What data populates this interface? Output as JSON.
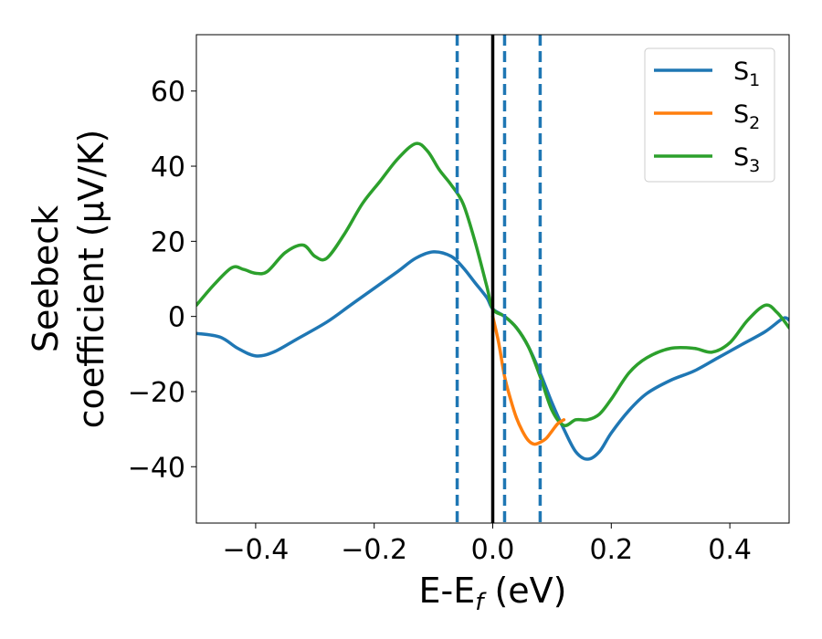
{
  "chart_data": {
    "type": "line",
    "xlabel": "E-E",
    "xlabel_sub": "f",
    "xlabel_unit": " (eV)",
    "ylabel_line1": "Seebeck",
    "ylabel_line2": "coefficient  (μV/K)",
    "xlim": [
      -0.5,
      0.5
    ],
    "ylim": [
      -55,
      75
    ],
    "xticks": [
      -0.4,
      -0.2,
      0.0,
      0.2,
      0.4
    ],
    "xtick_labels": [
      "−0.4",
      "−0.2",
      "0.0",
      "0.2",
      "0.4"
    ],
    "yticks": [
      -40,
      -20,
      0,
      20,
      40,
      60
    ],
    "ytick_labels": [
      "−40",
      "−20",
      "0",
      "20",
      "40",
      "60"
    ],
    "grid": false,
    "legend_position": "top-right",
    "vertical_lines": [
      {
        "x": -0.06,
        "style": "dashed",
        "color": "#1f77b4"
      },
      {
        "x": 0.0,
        "style": "solid",
        "color": "#000000"
      },
      {
        "x": 0.02,
        "style": "dashed",
        "color": "#1f77b4"
      },
      {
        "x": 0.08,
        "style": "dashed",
        "color": "#1f77b4"
      }
    ],
    "series": [
      {
        "name": "S",
        "sub": "1",
        "color": "#1f77b4",
        "points": [
          [
            -0.5,
            -4.5
          ],
          [
            -0.46,
            -5.5
          ],
          [
            -0.43,
            -8.5
          ],
          [
            -0.4,
            -10.5
          ],
          [
            -0.37,
            -9.5
          ],
          [
            -0.33,
            -6
          ],
          [
            -0.28,
            -1.5
          ],
          [
            -0.24,
            3
          ],
          [
            -0.2,
            7.5
          ],
          [
            -0.16,
            12
          ],
          [
            -0.13,
            15.5
          ],
          [
            -0.1,
            17.2
          ],
          [
            -0.07,
            16
          ],
          [
            -0.05,
            13
          ],
          [
            -0.03,
            9
          ],
          [
            -0.01,
            5
          ],
          [
            0.0,
            2
          ],
          [
            0.02,
            0
          ],
          [
            0.04,
            -3
          ],
          [
            0.06,
            -8
          ],
          [
            0.08,
            -15
          ],
          [
            0.1,
            -23
          ],
          [
            0.12,
            -30
          ],
          [
            0.14,
            -36
          ],
          [
            0.16,
            -38
          ],
          [
            0.18,
            -36
          ],
          [
            0.2,
            -31
          ],
          [
            0.23,
            -25
          ],
          [
            0.26,
            -20.5
          ],
          [
            0.3,
            -17
          ],
          [
            0.34,
            -14.5
          ],
          [
            0.38,
            -11
          ],
          [
            0.42,
            -7.5
          ],
          [
            0.46,
            -4
          ],
          [
            0.49,
            -0.5
          ],
          [
            0.5,
            -1
          ]
        ]
      },
      {
        "name": "S",
        "sub": "2",
        "color": "#ff7f0e",
        "points": [
          [
            0.0,
            0.0
          ],
          [
            0.01,
            -7
          ],
          [
            0.02,
            -16
          ],
          [
            0.03,
            -22
          ],
          [
            0.04,
            -27
          ],
          [
            0.05,
            -30.5
          ],
          [
            0.06,
            -33
          ],
          [
            0.07,
            -34
          ],
          [
            0.08,
            -33.5
          ],
          [
            0.09,
            -32.5
          ],
          [
            0.1,
            -30.5
          ],
          [
            0.11,
            -28.5
          ],
          [
            0.12,
            -27.5
          ]
        ]
      },
      {
        "name": "S",
        "sub": "3",
        "color": "#2ca02c",
        "points": [
          [
            -0.5,
            3
          ],
          [
            -0.47,
            8.5
          ],
          [
            -0.44,
            13
          ],
          [
            -0.42,
            12.5
          ],
          [
            -0.4,
            11.5
          ],
          [
            -0.38,
            12
          ],
          [
            -0.35,
            17
          ],
          [
            -0.32,
            19
          ],
          [
            -0.3,
            16
          ],
          [
            -0.28,
            15.5
          ],
          [
            -0.25,
            22
          ],
          [
            -0.22,
            30
          ],
          [
            -0.19,
            36
          ],
          [
            -0.16,
            42
          ],
          [
            -0.13,
            46
          ],
          [
            -0.11,
            44
          ],
          [
            -0.09,
            39
          ],
          [
            -0.07,
            35
          ],
          [
            -0.05,
            30
          ],
          [
            -0.03,
            20
          ],
          [
            -0.01,
            8
          ],
          [
            0.0,
            2
          ],
          [
            0.02,
            0
          ],
          [
            0.04,
            -3
          ],
          [
            0.06,
            -8
          ],
          [
            0.08,
            -16
          ],
          [
            0.1,
            -25
          ],
          [
            0.12,
            -29
          ],
          [
            0.14,
            -27.5
          ],
          [
            0.16,
            -27.5
          ],
          [
            0.18,
            -26
          ],
          [
            0.2,
            -22
          ],
          [
            0.23,
            -15
          ],
          [
            0.26,
            -11
          ],
          [
            0.3,
            -8.5
          ],
          [
            0.34,
            -8.5
          ],
          [
            0.37,
            -9.5
          ],
          [
            0.4,
            -7
          ],
          [
            0.43,
            -1
          ],
          [
            0.46,
            3
          ],
          [
            0.48,
            1
          ],
          [
            0.5,
            -3
          ]
        ]
      }
    ]
  }
}
